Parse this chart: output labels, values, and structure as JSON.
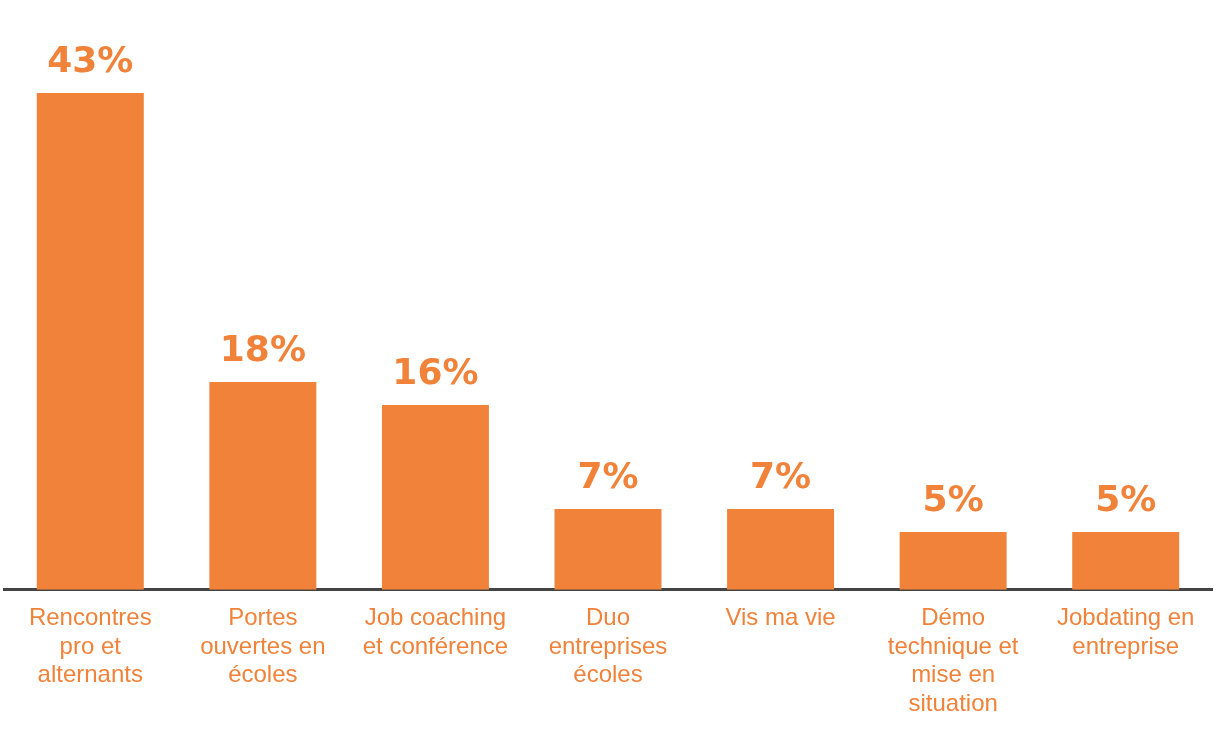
{
  "chart_data": {
    "type": "bar",
    "categories": [
      "Rencontres pro et alternants",
      "Portes ouvertes en écoles",
      "Job coaching et conférence",
      "Duo entreprises écoles",
      "Vis ma vie",
      "Démo technique et mise en situation",
      "Jobdating en entreprise"
    ],
    "values": [
      43,
      18,
      16,
      7,
      7,
      5,
      5
    ],
    "value_labels": [
      "43%",
      "18%",
      "16%",
      "7%",
      "7%",
      "5%",
      "5%"
    ],
    "color": "#f0823a"
  }
}
